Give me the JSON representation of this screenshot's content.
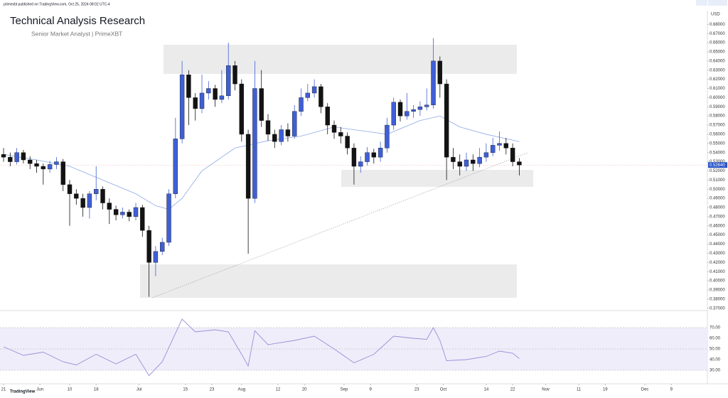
{
  "header": {
    "published": "primexbt published on TradingView.com, Oct 25, 2024 08:02 UTC-4",
    "title": "Technical Analysis Research",
    "subtitle": "Senior Market Analyst | PrimeXBT",
    "footer": "TradingView"
  },
  "chart_data": [
    {
      "type": "candlestick",
      "currency": "USD",
      "up_color": "#3f5fd6",
      "down_color": "#131313",
      "ma_color": "#8fa8e6",
      "xlim": [
        -1.08,
        212.9
      ],
      "xticks": [
        {
          "value": 0,
          "label": "21"
        },
        {
          "value": 11,
          "label": "Jun"
        },
        {
          "value": 20,
          "label": "10"
        },
        {
          "value": 28,
          "label": "18"
        },
        {
          "value": 41,
          "label": "Jul"
        },
        {
          "value": 55,
          "label": "15"
        },
        {
          "value": 63,
          "label": "23"
        },
        {
          "value": 72,
          "label": "Aug"
        },
        {
          "value": 83,
          "label": "12"
        },
        {
          "value": 91,
          "label": "20"
        },
        {
          "value": 103,
          "label": "Sep"
        },
        {
          "value": 111,
          "label": "9"
        },
        {
          "value": 125,
          "label": "23"
        },
        {
          "value": 133,
          "label": "Oct"
        },
        {
          "value": 146,
          "label": "14"
        },
        {
          "value": 154,
          "label": "22"
        },
        {
          "value": 164,
          "label": "Nov"
        },
        {
          "value": 174,
          "label": "11"
        },
        {
          "value": 182,
          "label": "19"
        },
        {
          "value": 194,
          "label": "Dec"
        },
        {
          "value": 202,
          "label": "9"
        }
      ],
      "ylim": [
        0.369,
        0.695
      ],
      "yticks": [
        {
          "value": 0.37,
          "label": "0.37000"
        },
        {
          "value": 0.38,
          "label": "0.38000"
        },
        {
          "value": 0.39,
          "label": "0.39000"
        },
        {
          "value": 0.4,
          "label": "0.40000"
        },
        {
          "value": 0.41,
          "label": "0.41000"
        },
        {
          "value": 0.42,
          "label": "0.42000"
        },
        {
          "value": 0.43,
          "label": "0.43000"
        },
        {
          "value": 0.44,
          "label": "0.44000"
        },
        {
          "value": 0.45,
          "label": "0.45000"
        },
        {
          "value": 0.46,
          "label": "0.46000"
        },
        {
          "value": 0.47,
          "label": "0.47000"
        },
        {
          "value": 0.48,
          "label": "0.48000"
        },
        {
          "value": 0.49,
          "label": "0.49000"
        },
        {
          "value": 0.5,
          "label": "0.50000"
        },
        {
          "value": 0.51,
          "label": "0.51000"
        },
        {
          "value": 0.52,
          "label": "0.52000"
        },
        {
          "value": 0.53,
          "label": "0.53000"
        },
        {
          "value": 0.54,
          "label": "0.54000"
        },
        {
          "value": 0.55,
          "label": "0.55000"
        },
        {
          "value": 0.56,
          "label": "0.56000"
        },
        {
          "value": 0.57,
          "label": "0.57000"
        },
        {
          "value": 0.58,
          "label": "0.58000"
        },
        {
          "value": 0.59,
          "label": "0.59000"
        },
        {
          "value": 0.6,
          "label": "0.60000"
        },
        {
          "value": 0.61,
          "label": "0.61000"
        },
        {
          "value": 0.62,
          "label": "0.62000"
        },
        {
          "value": 0.63,
          "label": "0.63000"
        },
        {
          "value": 0.64,
          "label": "0.64000"
        },
        {
          "value": 0.65,
          "label": "0.65000"
        },
        {
          "value": 0.66,
          "label": "0.66000"
        },
        {
          "value": 0.67,
          "label": "0.67000"
        },
        {
          "value": 0.68,
          "label": "0.68000"
        }
      ],
      "high": [
        0.545,
        0.54,
        0.545,
        0.543,
        0.536,
        0.532,
        0.528,
        0.531,
        0.535,
        0.533,
        0.51,
        0.5,
        0.495,
        0.498,
        0.525,
        0.503,
        0.49,
        0.482,
        0.48,
        0.478,
        0.485,
        0.483,
        0.46,
        0.438,
        0.447,
        0.5,
        0.578,
        0.64,
        0.63,
        0.605,
        0.625,
        0.618,
        0.614,
        0.63,
        0.66,
        0.64,
        0.62,
        0.565,
        0.64,
        0.63,
        0.582,
        0.565,
        0.57,
        0.572,
        0.592,
        0.61,
        0.615,
        0.62,
        0.615,
        0.594,
        0.575,
        0.568,
        0.562,
        0.55,
        0.536,
        0.546,
        0.544,
        0.552,
        0.578,
        0.6,
        0.598,
        0.605,
        0.592,
        0.596,
        0.61,
        0.665,
        0.645,
        0.62,
        0.545,
        0.538,
        0.54,
        0.538,
        0.545,
        0.55,
        0.556,
        0.563,
        0.556,
        0.55,
        0.534
      ],
      "low": [
        0.53,
        0.525,
        0.527,
        0.528,
        0.522,
        0.518,
        0.505,
        0.518,
        0.522,
        0.498,
        0.46,
        0.483,
        0.47,
        0.468,
        0.488,
        0.478,
        0.462,
        0.466,
        0.468,
        0.465,
        0.466,
        0.448,
        0.38249,
        0.405,
        0.428,
        0.438,
        0.49,
        0.55,
        0.57,
        0.575,
        0.583,
        0.598,
        0.59,
        0.594,
        0.598,
        0.608,
        0.552,
        0.4295,
        0.485,
        0.568,
        0.553,
        0.545,
        0.548,
        0.552,
        0.555,
        0.58,
        0.596,
        0.6,
        0.583,
        0.56,
        0.555,
        0.55,
        0.538,
        0.505,
        0.518,
        0.526,
        0.528,
        0.53,
        0.54,
        0.565,
        0.574,
        0.576,
        0.578,
        0.58,
        0.586,
        0.588,
        0.6,
        0.51,
        0.522,
        0.515,
        0.52,
        0.52,
        0.524,
        0.53,
        0.536,
        0.542,
        0.538,
        0.525,
        0.515
      ],
      "last": {
        "value": 0.5264,
        "label": "0.52640"
      },
      "x": [
        0,
        2,
        4,
        6,
        8,
        10,
        12,
        14,
        16,
        18,
        20,
        22,
        24,
        26,
        28,
        30,
        32,
        34,
        36,
        38,
        40,
        42,
        44,
        46,
        48,
        50,
        52,
        54,
        56,
        58,
        60,
        62,
        64,
        66,
        68,
        70,
        72,
        74,
        76,
        78,
        80,
        82,
        84,
        86,
        88,
        90,
        92,
        94,
        96,
        98,
        100,
        102,
        104,
        106,
        108,
        110,
        112,
        114,
        116,
        118,
        120,
        122,
        124,
        126,
        128,
        130,
        132,
        134,
        136,
        138,
        140,
        142,
        144,
        146,
        148,
        150,
        152,
        154,
        156
      ],
      "open": [
        0.538,
        0.535,
        0.53,
        0.54,
        0.532,
        0.528,
        0.525,
        0.522,
        0.527,
        0.53,
        0.505,
        0.495,
        0.49,
        0.48,
        0.495,
        0.5,
        0.485,
        0.478,
        0.472,
        0.475,
        0.47,
        0.48,
        0.455,
        0.42,
        0.432,
        0.442,
        0.495,
        0.555,
        0.625,
        0.6,
        0.588,
        0.605,
        0.61,
        0.598,
        0.602,
        0.635,
        0.615,
        0.56,
        0.49,
        0.61,
        0.575,
        0.56,
        0.552,
        0.565,
        0.558,
        0.585,
        0.6,
        0.605,
        0.612,
        0.59,
        0.57,
        0.562,
        0.558,
        0.545,
        0.525,
        0.53,
        0.54,
        0.535,
        0.545,
        0.57,
        0.595,
        0.58,
        0.585,
        0.587,
        0.59,
        0.592,
        0.64,
        0.615,
        0.535,
        0.53,
        0.525,
        0.532,
        0.528,
        0.535,
        0.54,
        0.548,
        0.55,
        0.545,
        0.53
      ],
      "close": [
        0.535,
        0.53,
        0.54,
        0.532,
        0.528,
        0.525,
        0.522,
        0.527,
        0.53,
        0.505,
        0.495,
        0.49,
        0.48,
        0.495,
        0.5,
        0.485,
        0.478,
        0.472,
        0.475,
        0.47,
        0.48,
        0.455,
        0.42,
        0.432,
        0.442,
        0.495,
        0.555,
        0.625,
        0.6,
        0.588,
        0.605,
        0.61,
        0.598,
        0.602,
        0.635,
        0.615,
        0.56,
        0.49,
        0.61,
        0.575,
        0.56,
        0.552,
        0.565,
        0.558,
        0.585,
        0.6,
        0.605,
        0.612,
        0.59,
        0.57,
        0.562,
        0.558,
        0.545,
        0.525,
        0.53,
        0.54,
        0.535,
        0.545,
        0.57,
        0.595,
        0.58,
        0.585,
        0.587,
        0.59,
        0.592,
        0.64,
        0.615,
        0.535,
        0.53,
        0.525,
        0.532,
        0.528,
        0.535,
        0.54,
        0.548,
        0.55,
        0.545,
        0.53,
        0.5264
      ],
      "ma_x": [
        0,
        10,
        20,
        30,
        40,
        46,
        50,
        54,
        60,
        70,
        80,
        90,
        100,
        106,
        116,
        126,
        132,
        138,
        146,
        156
      ],
      "ma": [
        0.538,
        0.532,
        0.525,
        0.51,
        0.495,
        0.482,
        0.478,
        0.49,
        0.52,
        0.545,
        0.553,
        0.558,
        0.568,
        0.565,
        0.56,
        0.575,
        0.58,
        0.568,
        0.56,
        0.552
      ]
    },
    {
      "type": "line",
      "color": "#9b8fd6",
      "band_color": "#efedfa",
      "ylim": [
        17.33,
        84
      ],
      "yticks": [
        {
          "value": 30,
          "label": "30.00"
        },
        {
          "value": 40,
          "label": "40.00"
        },
        {
          "value": 50,
          "label": "50.00"
        },
        {
          "value": 60,
          "label": "60.00"
        },
        {
          "value": 70,
          "label": "70.00"
        }
      ],
      "x": [
        0,
        6,
        12,
        18,
        22,
        28,
        34,
        40,
        44,
        48,
        54,
        58,
        64,
        68,
        72,
        74,
        76,
        80,
        88,
        94,
        100,
        106,
        112,
        118,
        124,
        128,
        130,
        132,
        134,
        140,
        146,
        150,
        154,
        156
      ],
      "values": [
        52,
        44,
        47,
        38,
        35,
        45,
        36,
        45,
        25,
        38,
        78,
        66,
        68,
        66,
        45,
        34,
        67,
        54,
        58,
        62,
        50,
        37,
        45,
        62,
        60,
        59,
        70,
        58,
        39,
        40,
        43,
        48,
        46,
        41
      ]
    }
  ]
}
